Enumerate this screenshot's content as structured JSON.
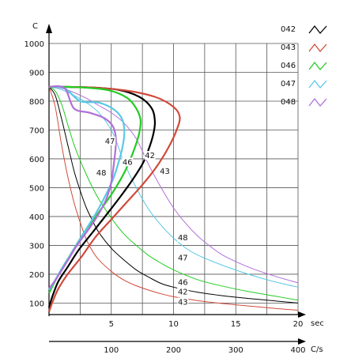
{
  "chart_data": {
    "type": "line",
    "y_axis": {
      "label": "C",
      "ticks": [
        100,
        200,
        300,
        400,
        500,
        600,
        700,
        800,
        900,
        1000
      ],
      "range": [
        60,
        1000
      ]
    },
    "x_axis_rate": {
      "label": "C/s",
      "ticks": [
        100,
        200,
        300,
        400
      ],
      "range": [
        0,
        400
      ]
    },
    "x_axis_time": {
      "label": "sec",
      "ticks": [
        5,
        10,
        15,
        20
      ],
      "range": [
        0,
        20
      ]
    },
    "grid": true,
    "legend_position": "right",
    "legend": [
      {
        "label": "042",
        "color": "#000000"
      },
      {
        "label": "043",
        "color": "#d04a3a"
      },
      {
        "label": "046",
        "color": "#22cc22"
      },
      {
        "label": "047",
        "color": "#5bc8e6"
      },
      {
        "label": "048",
        "color": "#b070d8"
      }
    ],
    "rate_curves": [
      {
        "name": "42",
        "color": "#000000",
        "points": [
          [
            0,
            850
          ],
          [
            60,
            848
          ],
          [
            110,
            840
          ],
          [
            145,
            815
          ],
          [
            165,
            775
          ],
          [
            170,
            730
          ],
          [
            168,
            690
          ],
          [
            162,
            645
          ],
          [
            152,
            590
          ],
          [
            135,
            530
          ],
          [
            115,
            470
          ],
          [
            90,
            400
          ],
          [
            70,
            345
          ],
          [
            48,
            285
          ],
          [
            30,
            225
          ],
          [
            15,
            175
          ],
          [
            5,
            120
          ],
          [
            0,
            85
          ]
        ]
      },
      {
        "name": "43",
        "color": "#d04a3a",
        "points": [
          [
            0,
            850
          ],
          [
            60,
            848
          ],
          [
            120,
            838
          ],
          [
            170,
            815
          ],
          [
            200,
            780
          ],
          [
            210,
            745
          ],
          [
            205,
            700
          ],
          [
            192,
            640
          ],
          [
            172,
            570
          ],
          [
            150,
            510
          ],
          [
            125,
            450
          ],
          [
            100,
            390
          ],
          [
            75,
            330
          ],
          [
            52,
            260
          ],
          [
            30,
            200
          ],
          [
            15,
            150
          ],
          [
            5,
            100
          ],
          [
            0,
            70
          ]
        ]
      },
      {
        "name": "46",
        "color": "#22cc22",
        "points": [
          [
            0,
            850
          ],
          [
            50,
            848
          ],
          [
            95,
            838
          ],
          [
            125,
            812
          ],
          [
            140,
            775
          ],
          [
            147,
            735
          ],
          [
            145,
            690
          ],
          [
            138,
            640
          ],
          [
            125,
            570
          ],
          [
            110,
            510
          ],
          [
            95,
            460
          ],
          [
            75,
            400
          ],
          [
            55,
            340
          ],
          [
            35,
            270
          ],
          [
            18,
            210
          ],
          [
            6,
            160
          ],
          [
            0,
            135
          ]
        ]
      },
      {
        "name": "47",
        "color": "#5bc8e6",
        "points": [
          [
            0,
            850
          ],
          [
            25,
            845
          ],
          [
            50,
            800
          ],
          [
            80,
            795
          ],
          [
            105,
            770
          ],
          [
            118,
            735
          ],
          [
            121,
            690
          ],
          [
            118,
            640
          ],
          [
            112,
            590
          ],
          [
            103,
            530
          ],
          [
            90,
            470
          ],
          [
            75,
            410
          ],
          [
            55,
            340
          ],
          [
            35,
            270
          ],
          [
            18,
            210
          ],
          [
            6,
            165
          ],
          [
            0,
            145
          ]
        ]
      },
      {
        "name": "48",
        "color": "#b070d8",
        "points": [
          [
            0,
            850
          ],
          [
            25,
            845
          ],
          [
            40,
            775
          ],
          [
            65,
            760
          ],
          [
            88,
            742
          ],
          [
            102,
            715
          ],
          [
            107,
            680
          ],
          [
            107,
            640
          ],
          [
            104,
            580
          ],
          [
            100,
            520
          ],
          [
            92,
            460
          ],
          [
            80,
            410
          ],
          [
            65,
            360
          ],
          [
            45,
            300
          ],
          [
            28,
            240
          ],
          [
            12,
            185
          ],
          [
            0,
            150
          ]
        ]
      }
    ],
    "time_curves": [
      {
        "name": "42",
        "color": "#000000",
        "points": [
          [
            0,
            850
          ],
          [
            0.5,
            820
          ],
          [
            1,
            740
          ],
          [
            1.5,
            650
          ],
          [
            2,
            560
          ],
          [
            2.5,
            490
          ],
          [
            3,
            430
          ],
          [
            3.5,
            385
          ],
          [
            4,
            345
          ],
          [
            5,
            290
          ],
          [
            6,
            250
          ],
          [
            7,
            215
          ],
          [
            8,
            190
          ],
          [
            9,
            168
          ],
          [
            10,
            155
          ],
          [
            12,
            137
          ],
          [
            14,
            125
          ],
          [
            16,
            116
          ],
          [
            18,
            108
          ],
          [
            20,
            100
          ]
        ]
      },
      {
        "name": "43",
        "color": "#d04a3a",
        "points": [
          [
            0,
            850
          ],
          [
            0.5,
            780
          ],
          [
            1,
            650
          ],
          [
            1.5,
            540
          ],
          [
            2,
            450
          ],
          [
            2.5,
            380
          ],
          [
            3,
            320
          ],
          [
            3.5,
            280
          ],
          [
            4,
            250
          ],
          [
            5,
            210
          ],
          [
            6,
            180
          ],
          [
            7,
            160
          ],
          [
            8,
            145
          ],
          [
            9,
            132
          ],
          [
            10,
            122
          ],
          [
            12,
            108
          ],
          [
            14,
            98
          ],
          [
            16,
            90
          ],
          [
            18,
            82
          ],
          [
            20,
            75
          ]
        ]
      },
      {
        "name": "46",
        "color": "#22cc22",
        "points": [
          [
            0,
            850
          ],
          [
            0.5,
            835
          ],
          [
            1,
            790
          ],
          [
            1.5,
            720
          ],
          [
            2,
            650
          ],
          [
            2.5,
            595
          ],
          [
            3,
            545
          ],
          [
            3.5,
            500
          ],
          [
            4,
            460
          ],
          [
            5,
            395
          ],
          [
            6,
            340
          ],
          [
            7,
            300
          ],
          [
            8,
            265
          ],
          [
            9,
            238
          ],
          [
            10,
            215
          ],
          [
            12,
            180
          ],
          [
            14,
            158
          ],
          [
            16,
            140
          ],
          [
            18,
            125
          ],
          [
            20,
            110
          ]
        ]
      },
      {
        "name": "47",
        "color": "#5bc8e6",
        "points": [
          [
            0,
            850
          ],
          [
            1,
            840
          ],
          [
            2,
            820
          ],
          [
            3,
            795
          ],
          [
            4,
            760
          ],
          [
            5,
            700
          ],
          [
            5.5,
            650
          ],
          [
            6,
            590
          ],
          [
            7,
            500
          ],
          [
            8,
            425
          ],
          [
            9,
            370
          ],
          [
            10,
            325
          ],
          [
            11,
            290
          ],
          [
            12,
            265
          ],
          [
            14,
            230
          ],
          [
            16,
            200
          ],
          [
            18,
            175
          ],
          [
            20,
            155
          ]
        ]
      },
      {
        "name": "48",
        "color": "#b070d8",
        "points": [
          [
            0,
            850
          ],
          [
            1,
            845
          ],
          [
            2,
            830
          ],
          [
            3,
            810
          ],
          [
            4,
            785
          ],
          [
            5,
            760
          ],
          [
            6,
            725
          ],
          [
            7,
            670
          ],
          [
            8,
            580
          ],
          [
            9,
            500
          ],
          [
            10,
            430
          ],
          [
            11,
            375
          ],
          [
            12,
            330
          ],
          [
            13,
            295
          ],
          [
            14,
            265
          ],
          [
            16,
            225
          ],
          [
            18,
            195
          ],
          [
            20,
            170
          ]
        ]
      }
    ],
    "annotations": [
      {
        "text": "47",
        "x": 98,
        "y": 655
      },
      {
        "text": "42",
        "x": 162,
        "y": 605
      },
      {
        "text": "46",
        "x": 126,
        "y": 582
      },
      {
        "text": "48",
        "x": 84,
        "y": 545
      },
      {
        "text": "43",
        "x": 186,
        "y": 550
      },
      {
        "text": "48",
        "x": 215,
        "y": 320
      },
      {
        "text": "47",
        "x": 215,
        "y": 250
      },
      {
        "text": "46",
        "x": 215,
        "y": 165
      },
      {
        "text": "42",
        "x": 215,
        "y": 132
      },
      {
        "text": "43",
        "x": 215,
        "y": 97
      }
    ]
  }
}
